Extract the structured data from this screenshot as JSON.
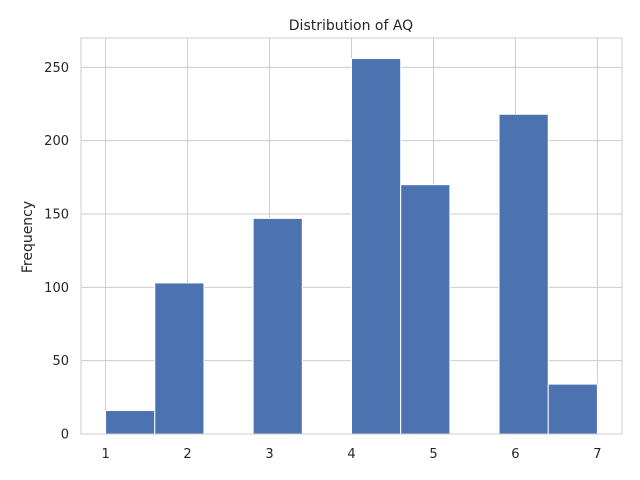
{
  "chart_data": {
    "type": "bar",
    "title": "Distribution of AQ",
    "xlabel": "",
    "ylabel": "Frequency",
    "xlim": [
      0.7,
      7.3
    ],
    "ylim": [
      0,
      270
    ],
    "xticks": [
      1,
      2,
      3,
      4,
      5,
      6,
      7
    ],
    "yticks": [
      0,
      50,
      100,
      150,
      200,
      250
    ],
    "bins": [
      {
        "x0": 1.0,
        "x1": 1.6,
        "value": 16
      },
      {
        "x0": 1.6,
        "x1": 2.2,
        "value": 103
      },
      {
        "x0": 2.2,
        "x1": 2.8,
        "value": 0
      },
      {
        "x0": 2.8,
        "x1": 3.4,
        "value": 147
      },
      {
        "x0": 3.4,
        "x1": 4.0,
        "value": 0
      },
      {
        "x0": 4.0,
        "x1": 4.6,
        "value": 256
      },
      {
        "x0": 4.6,
        "x1": 5.2,
        "value": 170
      },
      {
        "x0": 5.2,
        "x1": 5.8,
        "value": 0
      },
      {
        "x0": 5.8,
        "x1": 6.4,
        "value": 218
      },
      {
        "x0": 6.4,
        "x1": 7.0,
        "value": 34
      }
    ],
    "grid": true,
    "bar_color": "#4c72b0",
    "grid_color": "#cccccc",
    "background": "#ffffff"
  }
}
